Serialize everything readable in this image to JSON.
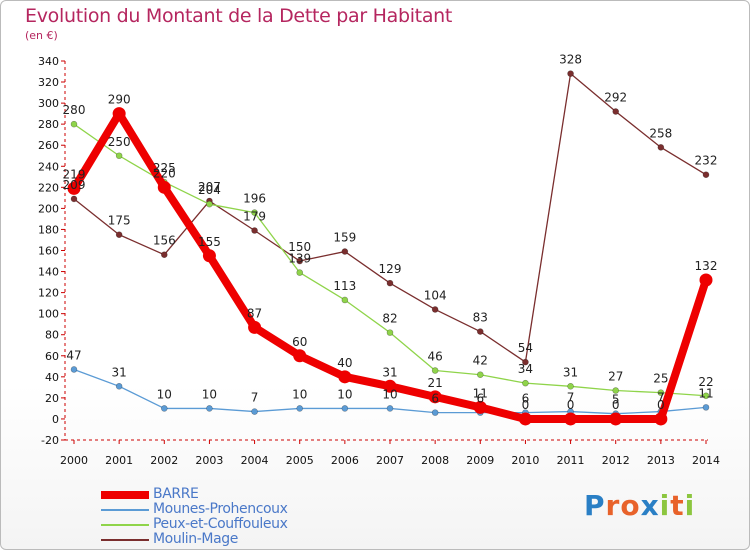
{
  "title": "Evolution du Montant de la Dette par Habitant",
  "subtitle": "(en €)",
  "brand": {
    "letters": [
      "P",
      "r",
      "o",
      "x",
      "i",
      "t",
      "i"
    ],
    "colors": [
      "#2a7fc5",
      "#e8622a",
      "#e8622a",
      "#2a7fc5",
      "#8cc63f",
      "#e8622a",
      "#8cc63f"
    ]
  },
  "chart_data": {
    "type": "line",
    "x": [
      "2000",
      "2001",
      "2002",
      "2003",
      "2004",
      "2005",
      "2006",
      "2007",
      "2008",
      "2009",
      "2010",
      "2011",
      "2012",
      "2013",
      "2014"
    ],
    "ylim": [
      -20,
      340
    ],
    "yticks": [
      -20,
      0,
      20,
      40,
      60,
      80,
      100,
      120,
      140,
      160,
      180,
      200,
      220,
      240,
      260,
      280,
      300,
      320,
      340
    ],
    "grid": false,
    "legend_position": "bottom-left",
    "series": [
      {
        "name": "BARRE",
        "color": "#ee0000",
        "values": [
          219,
          290,
          220,
          155,
          87,
          60,
          40,
          31,
          21,
          11,
          0,
          0,
          0,
          0,
          132
        ],
        "labels": [
          "219",
          "290",
          "220",
          "155",
          "87",
          "60",
          "40",
          "31",
          "21",
          "11",
          "0",
          "0",
          "0",
          "0",
          "132"
        ]
      },
      {
        "name": "Mounes-Prohencoux",
        "color": "#5b9bd5",
        "values": [
          47,
          31,
          10,
          10,
          7,
          10,
          10,
          10,
          6,
          6,
          6,
          7,
          5,
          7,
          11
        ],
        "labels": [
          "47",
          "31",
          "10",
          "10",
          "7",
          "10",
          "10",
          "10",
          "6",
          "6",
          "6",
          "7",
          "5",
          "7",
          "11"
        ]
      },
      {
        "name": "Peux-et-Couffouleux",
        "color": "#8fd44a",
        "values": [
          280,
          250,
          225,
          204,
          196,
          139,
          113,
          82,
          46,
          42,
          34,
          31,
          27,
          25,
          22
        ],
        "labels": [
          "280",
          "250",
          "225",
          "204",
          "196",
          "139",
          "113",
          "82",
          "46",
          "42",
          "34",
          "31",
          "27",
          "25",
          "22"
        ]
      },
      {
        "name": "Moulin-Mage",
        "color": "#7a2e2e",
        "values": [
          209,
          175,
          156,
          207,
          179,
          150,
          159,
          129,
          104,
          83,
          54,
          328,
          292,
          258,
          232
        ],
        "labels": [
          "209",
          "175",
          "156",
          "207",
          "179",
          "150",
          "159",
          "129",
          "104",
          "83",
          "54",
          "328",
          "292",
          "258",
          "232"
        ]
      }
    ]
  }
}
